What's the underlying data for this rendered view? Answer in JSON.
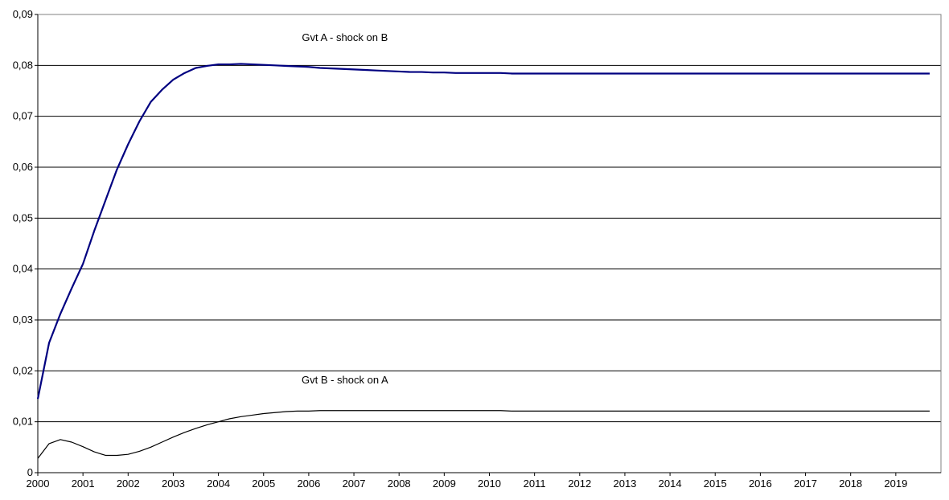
{
  "chart_data": {
    "type": "line",
    "title": "",
    "xlabel": "",
    "ylabel": "",
    "ylim": [
      0,
      0.09
    ],
    "y_ticks": [
      "0",
      "0,01",
      "0,02",
      "0,03",
      "0,04",
      "0,05",
      "0,06",
      "0,07",
      "0,08",
      "0,09"
    ],
    "y_tick_values": [
      0,
      0.01,
      0.02,
      0.03,
      0.04,
      0.05,
      0.06,
      0.07,
      0.08,
      0.09
    ],
    "x_ticks": [
      "2000",
      "2001",
      "2002",
      "2003",
      "2004",
      "2005",
      "2006",
      "2007",
      "2008",
      "2009",
      "2010",
      "2011",
      "2012",
      "2013",
      "2014",
      "2015",
      "2016",
      "2017",
      "2018",
      "2019"
    ],
    "x_start_year": 2000,
    "periods_per_year": 4,
    "grid": "horizontal",
    "legend": "none",
    "series": [
      {
        "name": "Gvt A - shock on B",
        "color": "#000080",
        "values": [
          0.0145,
          0.0255,
          0.0312,
          0.0362,
          0.041,
          0.0475,
          0.0535,
          0.0595,
          0.0645,
          0.069,
          0.0728,
          0.0752,
          0.0772,
          0.0785,
          0.0795,
          0.0799,
          0.0802,
          0.0802,
          0.0803,
          0.0802,
          0.0801,
          0.08,
          0.0799,
          0.0798,
          0.0797,
          0.0795,
          0.0794,
          0.0793,
          0.0792,
          0.0791,
          0.079,
          0.0789,
          0.0788,
          0.0787,
          0.0787,
          0.0786,
          0.0786,
          0.0785,
          0.0785,
          0.0785,
          0.0785,
          0.0785,
          0.0784,
          0.0784,
          0.0784,
          0.0784,
          0.0784,
          0.0784,
          0.0784,
          0.0784,
          0.0784,
          0.0784,
          0.0784,
          0.0784,
          0.0784,
          0.0784,
          0.0784,
          0.0784,
          0.0784,
          0.0784,
          0.0784,
          0.0784,
          0.0784,
          0.0784,
          0.0784,
          0.0784,
          0.0784,
          0.0784,
          0.0784,
          0.0784,
          0.0784,
          0.0784,
          0.0784,
          0.0784,
          0.0784,
          0.0784,
          0.0784,
          0.0784,
          0.0784,
          0.0784
        ]
      },
      {
        "name": "Gvt B - shock on A",
        "color": "#000000",
        "values": [
          0.0028,
          0.0057,
          0.0065,
          0.006,
          0.0051,
          0.0041,
          0.0034,
          0.0034,
          0.0036,
          0.0042,
          0.005,
          0.006,
          0.007,
          0.0079,
          0.0087,
          0.0094,
          0.01,
          0.0106,
          0.011,
          0.0113,
          0.0116,
          0.0118,
          0.012,
          0.0121,
          0.0121,
          0.0122,
          0.0122,
          0.0122,
          0.0122,
          0.0122,
          0.0122,
          0.0122,
          0.0122,
          0.0122,
          0.0122,
          0.0122,
          0.0122,
          0.0122,
          0.0122,
          0.0122,
          0.0122,
          0.0122,
          0.0121,
          0.0121,
          0.0121,
          0.0121,
          0.0121,
          0.0121,
          0.0121,
          0.0121,
          0.0121,
          0.0121,
          0.0121,
          0.0121,
          0.0121,
          0.0121,
          0.0121,
          0.0121,
          0.0121,
          0.0121,
          0.0121,
          0.0121,
          0.0121,
          0.0121,
          0.0121,
          0.0121,
          0.0121,
          0.0121,
          0.0121,
          0.0121,
          0.0121,
          0.0121,
          0.0121,
          0.0121,
          0.0121,
          0.0121,
          0.0121,
          0.0121,
          0.0121,
          0.0121
        ]
      }
    ],
    "annotations": [
      {
        "text": "Gvt A - shock on B",
        "x": 2006.8,
        "y": 0.0848
      },
      {
        "text": "Gvt B - shock on A",
        "x": 2006.8,
        "y": 0.0175
      }
    ]
  }
}
